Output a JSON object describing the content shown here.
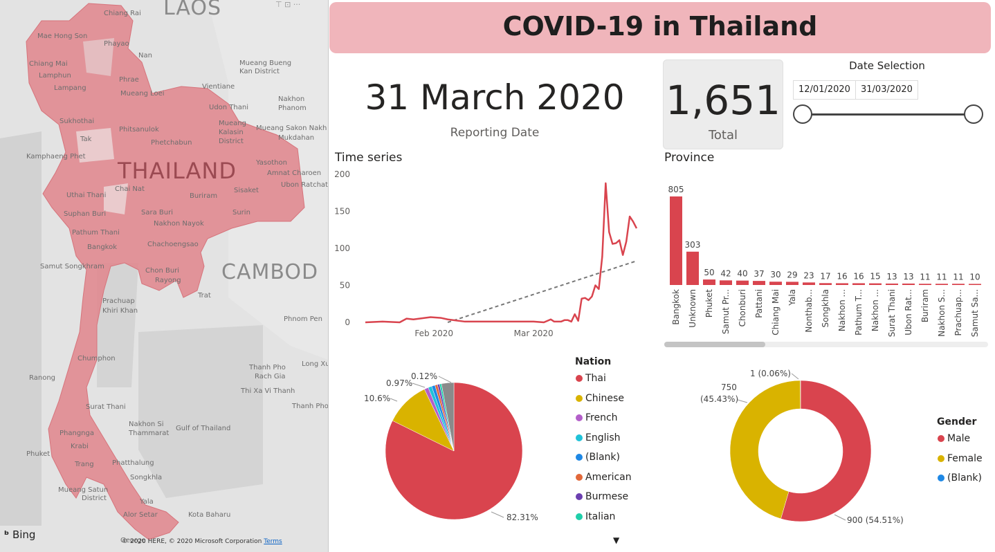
{
  "map": {
    "labels": {
      "laos": "LAOS",
      "thailand": "THAILAND",
      "cambodia": "CAMBOD",
      "chiang_rai": "Chiang Rai",
      "mae_hong_son": "Mae Hong Son",
      "phayao": "Phayao",
      "nan": "Nan",
      "chiang_mai": "Chiang Mai",
      "lamphun": "Lamphun",
      "lampang": "Lampang",
      "phrae": "Phrae",
      "mueang_bueng": "Mueang Bueng",
      "kan_district": "Kan District",
      "mueang_loei": "Mueang Loei",
      "vientiane": "Vientiane",
      "nakhon": "Nakhon",
      "phanom": "Phanom",
      "sukhothai": "Sukhothai",
      "udon_thani": "Udon Thani",
      "mueang": "Mueang",
      "kalasin": "Kalasin",
      "district": "District",
      "phitsanulok": "Phitsanulok",
      "mueang_sakon": "Mueang Sakon Nakh",
      "mukdahan": "Mukdahan",
      "tak": "Tak",
      "phetchabun": "Phetchabun",
      "kamphaeng": "Kamphaeng Phet",
      "yasothon": "Yasothon",
      "amnat": "Amnat Charoen",
      "chai_nat": "Chai Nat",
      "sisaket": "Sisaket",
      "ubon": "Ubon Ratchat",
      "uthai_thani": "Uthai Thani",
      "buriram": "Buriram",
      "suphan": "Suphan Buri",
      "sara_buri": "Sara Buri",
      "surin": "Surin",
      "nakhon_nayok": "Nakhon Nayok",
      "pathum": "Pathum Thani",
      "bangkok": "Bangkok",
      "chachoengsao": "Chachoengsao",
      "samut_songkhram": "Samut Songkhram",
      "chon_buri": "Chon Buri",
      "rayong": "Rayong",
      "trat": "Trat",
      "prachuap": "Prachuap",
      "khiri_khan": "Khiri Khan",
      "phnom_penh": "Phnom Pen",
      "chumphon": "Chumphon",
      "thanh_pho": "Thanh Pho",
      "long_xu": "Long Xu",
      "rach_gia": "Rach Gia",
      "ranong": "Ranong",
      "thi_xa": "Thi Xa Vi Thanh",
      "surat_thani": "Surat Thani",
      "thanh_pho2": "Thanh Pho",
      "nakhon_si": "Nakhon Si",
      "thammarat": "Thammarat",
      "gulf": "Gulf of Thailand",
      "phangnga": "Phangnga",
      "krabi": "Krabi",
      "phuket": "Phuket",
      "trang": "Trang",
      "phatthalung": "Phatthalung",
      "songkhla": "Songkhla",
      "mueang_satun": "Mueang Satun",
      "district2": "District",
      "yala": "Yala",
      "alor_setar": "Alor Setar",
      "kota_bahru": "Kota Baharu",
      "george": "George"
    },
    "bing": "Bing",
    "copyright": "© 2020 HERE, © 2020 Microsoft Corporation",
    "terms": "Terms",
    "toolbar": "⊤  ⊡  ···"
  },
  "header": {
    "title": "COVID-19 in Thailand"
  },
  "reporting": {
    "date": "31 March 2020",
    "label": "Reporting Date"
  },
  "total": {
    "value": "1,651",
    "label": "Total"
  },
  "slicer": {
    "title": "Date Selection",
    "start": "12/01/2020",
    "end": "31/03/2020",
    "range_fraction": [
      0,
      1
    ]
  },
  "time_series": {
    "title": "Time series"
  },
  "province": {
    "title": "Province"
  },
  "nation_legend": {
    "title": "Nation",
    "items": [
      {
        "label": "Thai",
        "color": "#d9444e"
      },
      {
        "label": "Chinese",
        "color": "#d9b300"
      },
      {
        "label": "French",
        "color": "#b35fc9"
      },
      {
        "label": "English",
        "color": "#20c2d8"
      },
      {
        "label": "(Blank)",
        "color": "#1e88e5"
      },
      {
        "label": "American",
        "color": "#e2683a"
      },
      {
        "label": "Burmese",
        "color": "#6b3fb0"
      },
      {
        "label": "Italian",
        "color": "#1fcfaa"
      }
    ],
    "more_icon": "triangle-down-icon"
  },
  "gender_legend": {
    "title": "Gender",
    "items": [
      {
        "label": "Male",
        "color": "#d9444e"
      },
      {
        "label": "Female",
        "color": "#d9b300"
      },
      {
        "label": "(Blank)",
        "color": "#1e88e5"
      }
    ]
  },
  "chart_data": [
    {
      "type": "line",
      "title": "Time series",
      "x": [
        "2020-01-12",
        "2020-01-17",
        "2020-01-22",
        "2020-01-24",
        "2020-01-26",
        "2020-01-31",
        "2020-02-03",
        "2020-02-05",
        "2020-02-10",
        "2020-02-20",
        "2020-02-26",
        "2020-03-01",
        "2020-03-04",
        "2020-03-06",
        "2020-03-07",
        "2020-03-09",
        "2020-03-10",
        "2020-03-11",
        "2020-03-12",
        "2020-03-13",
        "2020-03-14",
        "2020-03-15",
        "2020-03-16",
        "2020-03-17",
        "2020-03-18",
        "2020-03-19",
        "2020-03-20",
        "2020-03-21",
        "2020-03-22",
        "2020-03-23",
        "2020-03-24",
        "2020-03-25",
        "2020-03-26",
        "2020-03-27",
        "2020-03-28",
        "2020-03-29",
        "2020-03-30",
        "2020-03-31"
      ],
      "y": [
        0,
        1,
        0,
        5,
        4,
        7,
        6,
        4,
        1,
        1,
        1,
        1,
        0,
        4,
        1,
        1,
        3,
        3,
        1,
        11,
        2,
        32,
        33,
        30,
        35,
        50,
        45,
        89,
        188,
        122,
        106,
        107,
        111,
        91,
        109,
        143,
        136,
        127
      ],
      "x_ticks": [
        "Feb 2020",
        "Mar 2020"
      ],
      "y_ticks": [
        0,
        50,
        100,
        150,
        200
      ],
      "ylim": [
        0,
        200
      ],
      "trendline": {
        "start": 0,
        "end": 83,
        "style": "dashed"
      }
    },
    {
      "type": "bar",
      "title": "Province",
      "categories": [
        "Bangkok",
        "Unknown",
        "Phuket",
        "Samut Pr...",
        "Chonburi",
        "Pattani",
        "Chiang Mai",
        "Yala",
        "Nonthab...",
        "Songkhla",
        "Nakhon ...",
        "Pathum T...",
        "Nakhon ...",
        "Surat Thani",
        "Ubon Rat...",
        "Buriram",
        "Nakhon S...",
        "Prachuap...",
        "Samut Sa..."
      ],
      "values": [
        805,
        303,
        50,
        42,
        40,
        37,
        30,
        29,
        23,
        17,
        16,
        16,
        15,
        13,
        13,
        11,
        11,
        11,
        10
      ],
      "ylim": [
        0,
        900
      ]
    },
    {
      "type": "pie",
      "title": "Nation",
      "slices": [
        {
          "label": "Thai",
          "value": 82.31,
          "color": "#d9444e"
        },
        {
          "label": "Chinese",
          "value": 10.6,
          "color": "#d9b300"
        },
        {
          "label": "French",
          "value": 0.97,
          "color": "#b35fc9"
        },
        {
          "label": "English",
          "value": 0.85,
          "color": "#20c2d8"
        },
        {
          "label": "(Blank)",
          "value": 0.8,
          "color": "#1e88e5"
        },
        {
          "label": "American",
          "value": 0.6,
          "color": "#e2683a"
        },
        {
          "label": "Burmese",
          "value": 0.5,
          "color": "#6b3fb0"
        },
        {
          "label": "Italian",
          "value": 0.45,
          "color": "#1fcfaa"
        },
        {
          "label": "Other",
          "value": 2.92,
          "color": "#8a8a8a"
        }
      ],
      "data_labels": [
        "82.31%",
        "10.6%",
        "0.97%",
        "0.12%"
      ]
    },
    {
      "type": "pie",
      "title": "Gender",
      "donut": true,
      "slices": [
        {
          "label": "Male",
          "value": 900,
          "color": "#d9444e"
        },
        {
          "label": "Female",
          "value": 750,
          "color": "#d9b300"
        },
        {
          "label": "(Blank)",
          "value": 1,
          "color": "#1e88e5"
        }
      ],
      "data_labels": [
        "900 (54.51%)",
        "750",
        "(45.43%)",
        "1 (0.06%)"
      ]
    }
  ]
}
